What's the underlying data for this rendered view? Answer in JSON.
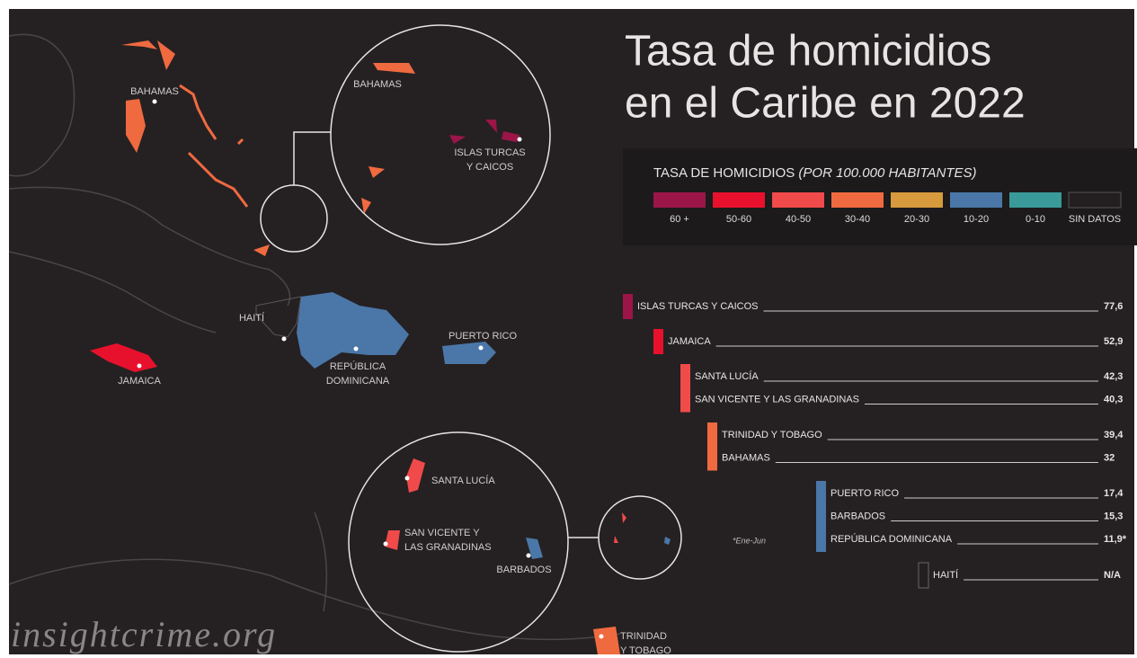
{
  "title": [
    "Tasa de homicidios",
    "en el Caribe en 2022"
  ],
  "legend": {
    "title": "TASA DE HOMICIDIOS",
    "title_note": "(POR 100.000 HABITANTES)",
    "items": [
      {
        "label": "60 +",
        "color": "#9b1548"
      },
      {
        "label": "50-60",
        "color": "#e8112d"
      },
      {
        "label": "40-50",
        "color": "#f04a4a"
      },
      {
        "label": "30-40",
        "color": "#f06a40"
      },
      {
        "label": "20-30",
        "color": "#d79a3c"
      },
      {
        "label": "10-20",
        "color": "#4a77a8"
      },
      {
        "label": "0-10",
        "color": "#3a9a9a"
      },
      {
        "label": "SIN DATOS",
        "color": "#231f20"
      }
    ]
  },
  "ranking": [
    {
      "color": "#9b1548",
      "rows": [
        {
          "name": "ISLAS TURCAS Y CAICOS",
          "value": "77,6"
        }
      ]
    },
    {
      "color": "#e8112d",
      "rows": [
        {
          "name": "JAMAICA",
          "value": "52,9"
        }
      ]
    },
    {
      "color": "#f04a4a",
      "rows": [
        {
          "name": "SANTA LUCÍA",
          "value": "42,3"
        },
        {
          "name": "SAN VICENTE Y LAS GRANADINAS",
          "value": "40,3"
        }
      ]
    },
    {
      "color": "#f06a40",
      "rows": [
        {
          "name": "TRINIDAD Y TOBAGO",
          "value": "39,4"
        },
        {
          "name": "BAHAMAS",
          "value": "32"
        }
      ]
    },
    {
      "color": "#4a77a8",
      "rows": [
        {
          "name": "PUERTO RICO",
          "value": "17,4"
        },
        {
          "name": "BARBADOS",
          "value": "15,3"
        },
        {
          "name": "REPÚBLICA DOMINICANA",
          "value": "11,9*"
        }
      ]
    },
    {
      "color": "#231f20",
      "rows": [
        {
          "name": "HAITÍ",
          "value": "N/A"
        }
      ]
    }
  ],
  "footnote": "*Ene-Jun",
  "map_labels": [
    {
      "lines": [
        "BAHAMAS"
      ]
    },
    {
      "lines": [
        "HAITÍ"
      ]
    },
    {
      "lines": [
        "JAMAICA"
      ]
    },
    {
      "lines": [
        "REPÚBLICA",
        "DOMINICANA"
      ]
    },
    {
      "lines": [
        "PUERTO RICO"
      ]
    },
    {
      "lines": [
        "BAHAMAS"
      ]
    },
    {
      "lines": [
        "ISLAS TURCAS",
        "Y CAICOS"
      ]
    },
    {
      "lines": [
        "SANTA LUCÍA"
      ]
    },
    {
      "lines": [
        "SAN VICENTE Y",
        "LAS GRANADINAS"
      ]
    },
    {
      "lines": [
        "BARBADOS"
      ]
    },
    {
      "lines": [
        "TRINIDAD",
        "Y TOBAGO"
      ]
    }
  ],
  "watermark": "insightcrime.org"
}
